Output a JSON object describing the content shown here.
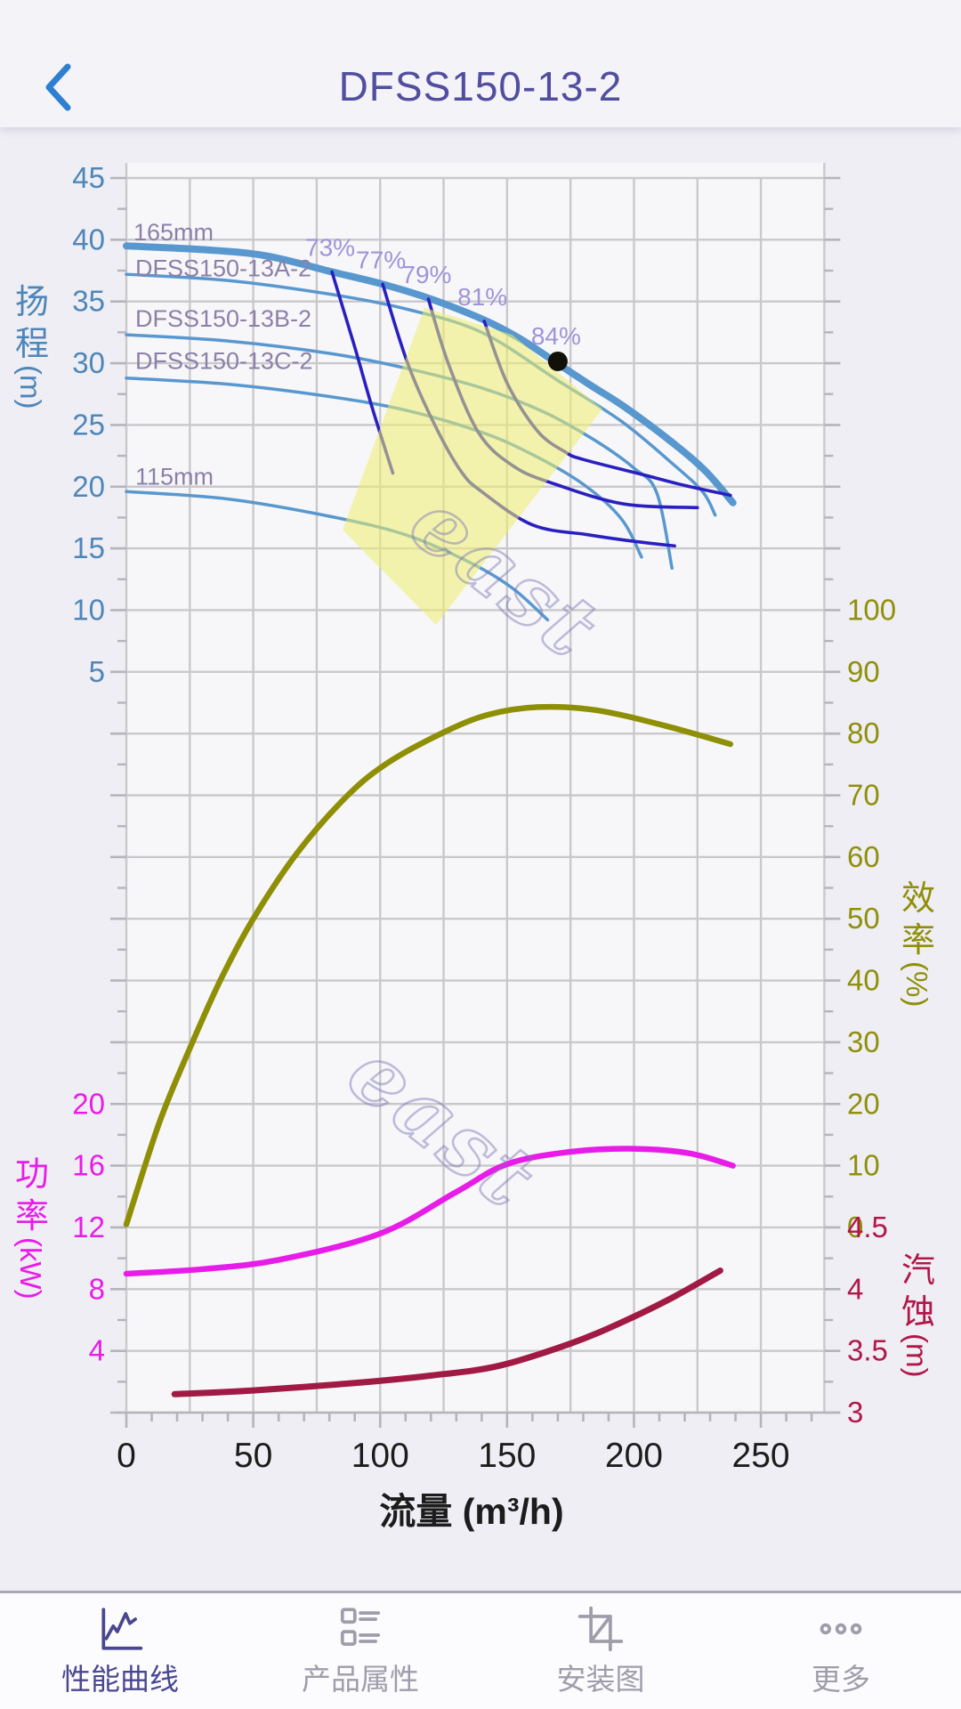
{
  "header": {
    "title": "DFSS150-13-2"
  },
  "watermark": {
    "text": "east"
  },
  "chart_data": {
    "type": "line",
    "x_axis": {
      "label": "流量 (m³/h)",
      "min": 0,
      "max": 275,
      "tick_labels": [
        0,
        50,
        100,
        150,
        200,
        250
      ],
      "major_step": 50,
      "minor_step": 10,
      "grid_step": 25
    },
    "axes": {
      "head": {
        "title_chars": "扬程",
        "title_unit": "(m)",
        "color": "#4e86b8",
        "ticks": [
          45,
          40,
          35,
          30,
          25,
          20,
          15,
          10,
          5
        ],
        "range": [
          5,
          45
        ]
      },
      "efficiency": {
        "title_chars": "效率",
        "title_unit": "(%)",
        "color": "#8f8f0a",
        "ticks": [
          100,
          90,
          80,
          70,
          60,
          50,
          40,
          30,
          20,
          10,
          0
        ],
        "range": [
          0,
          100
        ]
      },
      "power": {
        "title_chars": "功率",
        "title_unit": "(kW)",
        "color": "#e81ce8",
        "ticks": [
          20,
          16,
          12,
          8,
          4
        ],
        "range": [
          4,
          20
        ]
      },
      "npsh": {
        "title_chars": "汽蚀",
        "title_unit": "(m)",
        "color": "#b01848",
        "ticks": [
          4.5,
          4,
          3.5,
          3
        ],
        "range": [
          3,
          4.5
        ]
      }
    },
    "head_curves": [
      {
        "name": "165mm",
        "label": "165mm",
        "points": [
          [
            0,
            39.5
          ],
          [
            30,
            39.2
          ],
          [
            55,
            38.7
          ],
          [
            81,
            37.4
          ],
          [
            101,
            36.4
          ],
          [
            120,
            35.2
          ],
          [
            141,
            33.5
          ],
          [
            155,
            32.0
          ],
          [
            169,
            30.1
          ],
          [
            183,
            28.2
          ],
          [
            196,
            26.5
          ],
          [
            215,
            23.6
          ],
          [
            228,
            21.3
          ],
          [
            239,
            18.7
          ]
        ]
      },
      {
        "name": "DFSS150-13A-2",
        "label": "DFSS150-13A-2",
        "points": [
          [
            0,
            37.2
          ],
          [
            40,
            36.7
          ],
          [
            80,
            35.6
          ],
          [
            110,
            34.4
          ],
          [
            140,
            32.5
          ],
          [
            170,
            28.6
          ],
          [
            195,
            25.3
          ],
          [
            215,
            21.9
          ],
          [
            227,
            19.6
          ],
          [
            232,
            17.7
          ]
        ]
      },
      {
        "name": "DFSS150-13B-2",
        "label": "DFSS150-13B-2",
        "points": [
          [
            0,
            32.3
          ],
          [
            40,
            31.8
          ],
          [
            80,
            30.8
          ],
          [
            110,
            29.6
          ],
          [
            140,
            28.0
          ],
          [
            165,
            26.0
          ],
          [
            185,
            23.7
          ],
          [
            200,
            21.5
          ],
          [
            209,
            19.5
          ],
          [
            215,
            13.4
          ]
        ]
      },
      {
        "name": "DFSS150-13C-2",
        "label": "DFSS150-13C-2",
        "points": [
          [
            0,
            28.8
          ],
          [
            40,
            28.3
          ],
          [
            80,
            27.3
          ],
          [
            110,
            26.2
          ],
          [
            140,
            24.4
          ],
          [
            160,
            22.6
          ],
          [
            180,
            20.2
          ],
          [
            195,
            17.4
          ],
          [
            203,
            14.3
          ]
        ]
      },
      {
        "name": "115mm",
        "label": "115mm",
        "points": [
          [
            0,
            19.6
          ],
          [
            40,
            19.0
          ],
          [
            80,
            17.6
          ],
          [
            110,
            16.1
          ],
          [
            135,
            13.9
          ],
          [
            152,
            11.8
          ],
          [
            166,
            9.2
          ]
        ]
      }
    ],
    "efficiency_contours": [
      {
        "label": "73%",
        "points": [
          [
            81,
            37.4
          ],
          [
            90,
            31.3
          ],
          [
            97,
            26.3
          ],
          [
            105,
            21.1
          ]
        ]
      },
      {
        "label": "77%",
        "points": [
          [
            101,
            36.4
          ],
          [
            111,
            29.9
          ],
          [
            122,
            24.8
          ],
          [
            132,
            21.2
          ],
          [
            140,
            19.6
          ],
          [
            160,
            16.9
          ],
          [
            182,
            16.1
          ],
          [
            199,
            15.6
          ],
          [
            216,
            15.2
          ]
        ]
      },
      {
        "label": "79%",
        "points": [
          [
            119,
            35.2
          ],
          [
            127,
            29.9
          ],
          [
            139,
            24.3
          ],
          [
            153,
            21.6
          ],
          [
            169,
            20.2
          ],
          [
            196,
            18.6
          ],
          [
            225,
            18.3
          ]
        ]
      },
      {
        "label": "81%",
        "points": [
          [
            141,
            33.4
          ],
          [
            150,
            28.4
          ],
          [
            162,
            24.5
          ],
          [
            173,
            22.8
          ],
          [
            180,
            22.2
          ],
          [
            203,
            21.0
          ],
          [
            220,
            20.1
          ],
          [
            238,
            19.3
          ]
        ]
      }
    ],
    "duty_point": {
      "q": 170,
      "h": 30.15,
      "label": "84%"
    },
    "operating_region": [
      [
        117.5,
        34.5
      ],
      [
        152,
        32.3
      ],
      [
        187.6,
        26.3
      ],
      [
        122,
        8.8
      ],
      [
        85.2,
        16.5
      ]
    ],
    "efficiency_curve": {
      "name": "efficiency",
      "points": [
        [
          0,
          0.5
        ],
        [
          13,
          17
        ],
        [
          25,
          29
        ],
        [
          37,
          40
        ],
        [
          50,
          50
        ],
        [
          67,
          60.5
        ],
        [
          86,
          69.5
        ],
        [
          102,
          75
        ],
        [
          124,
          80
        ],
        [
          142,
          83
        ],
        [
          162,
          84.3
        ],
        [
          185,
          83.8
        ],
        [
          212,
          81.3
        ],
        [
          238,
          78.3
        ]
      ]
    },
    "power_curve": {
      "name": "power",
      "points": [
        [
          0,
          9.0
        ],
        [
          30,
          9.3
        ],
        [
          60,
          9.9
        ],
        [
          100,
          11.6
        ],
        [
          130,
          14.3
        ],
        [
          150,
          16.1
        ],
        [
          175,
          16.9
        ],
        [
          200,
          17.1
        ],
        [
          222,
          16.8
        ],
        [
          239,
          16.0
        ]
      ]
    },
    "npsh_curve": {
      "name": "npsh",
      "points": [
        [
          19,
          3.15
        ],
        [
          50,
          3.18
        ],
        [
          90,
          3.24
        ],
        [
          120,
          3.3
        ],
        [
          147,
          3.38
        ],
        [
          175,
          3.56
        ],
        [
          195,
          3.73
        ],
        [
          215,
          3.93
        ],
        [
          234,
          4.15
        ]
      ]
    },
    "colors": {
      "head_curve": "#5898cf",
      "contour": "#2a20c0",
      "efficiency_curve": "#8f8f05",
      "power_curve": "#e81ce8",
      "npsh_curve": "#a01a44",
      "operating_region": "#eeee6e",
      "curve_label": "#8d80a8",
      "contour_label": "#9e94d8",
      "grid": "#c9c9cc",
      "tick": "#b4b4ba",
      "x_text": "#1c1c1c",
      "duty_dot": "#111108",
      "watermark": "#7a74b2"
    }
  },
  "nav": {
    "items": [
      {
        "label": "性能曲线",
        "icon": "performance-curve",
        "active": true
      },
      {
        "label": "产品属性",
        "icon": "product-attributes",
        "active": false
      },
      {
        "label": "安装图",
        "icon": "installation",
        "active": false
      },
      {
        "label": "更多",
        "icon": "more",
        "active": false
      }
    ]
  }
}
